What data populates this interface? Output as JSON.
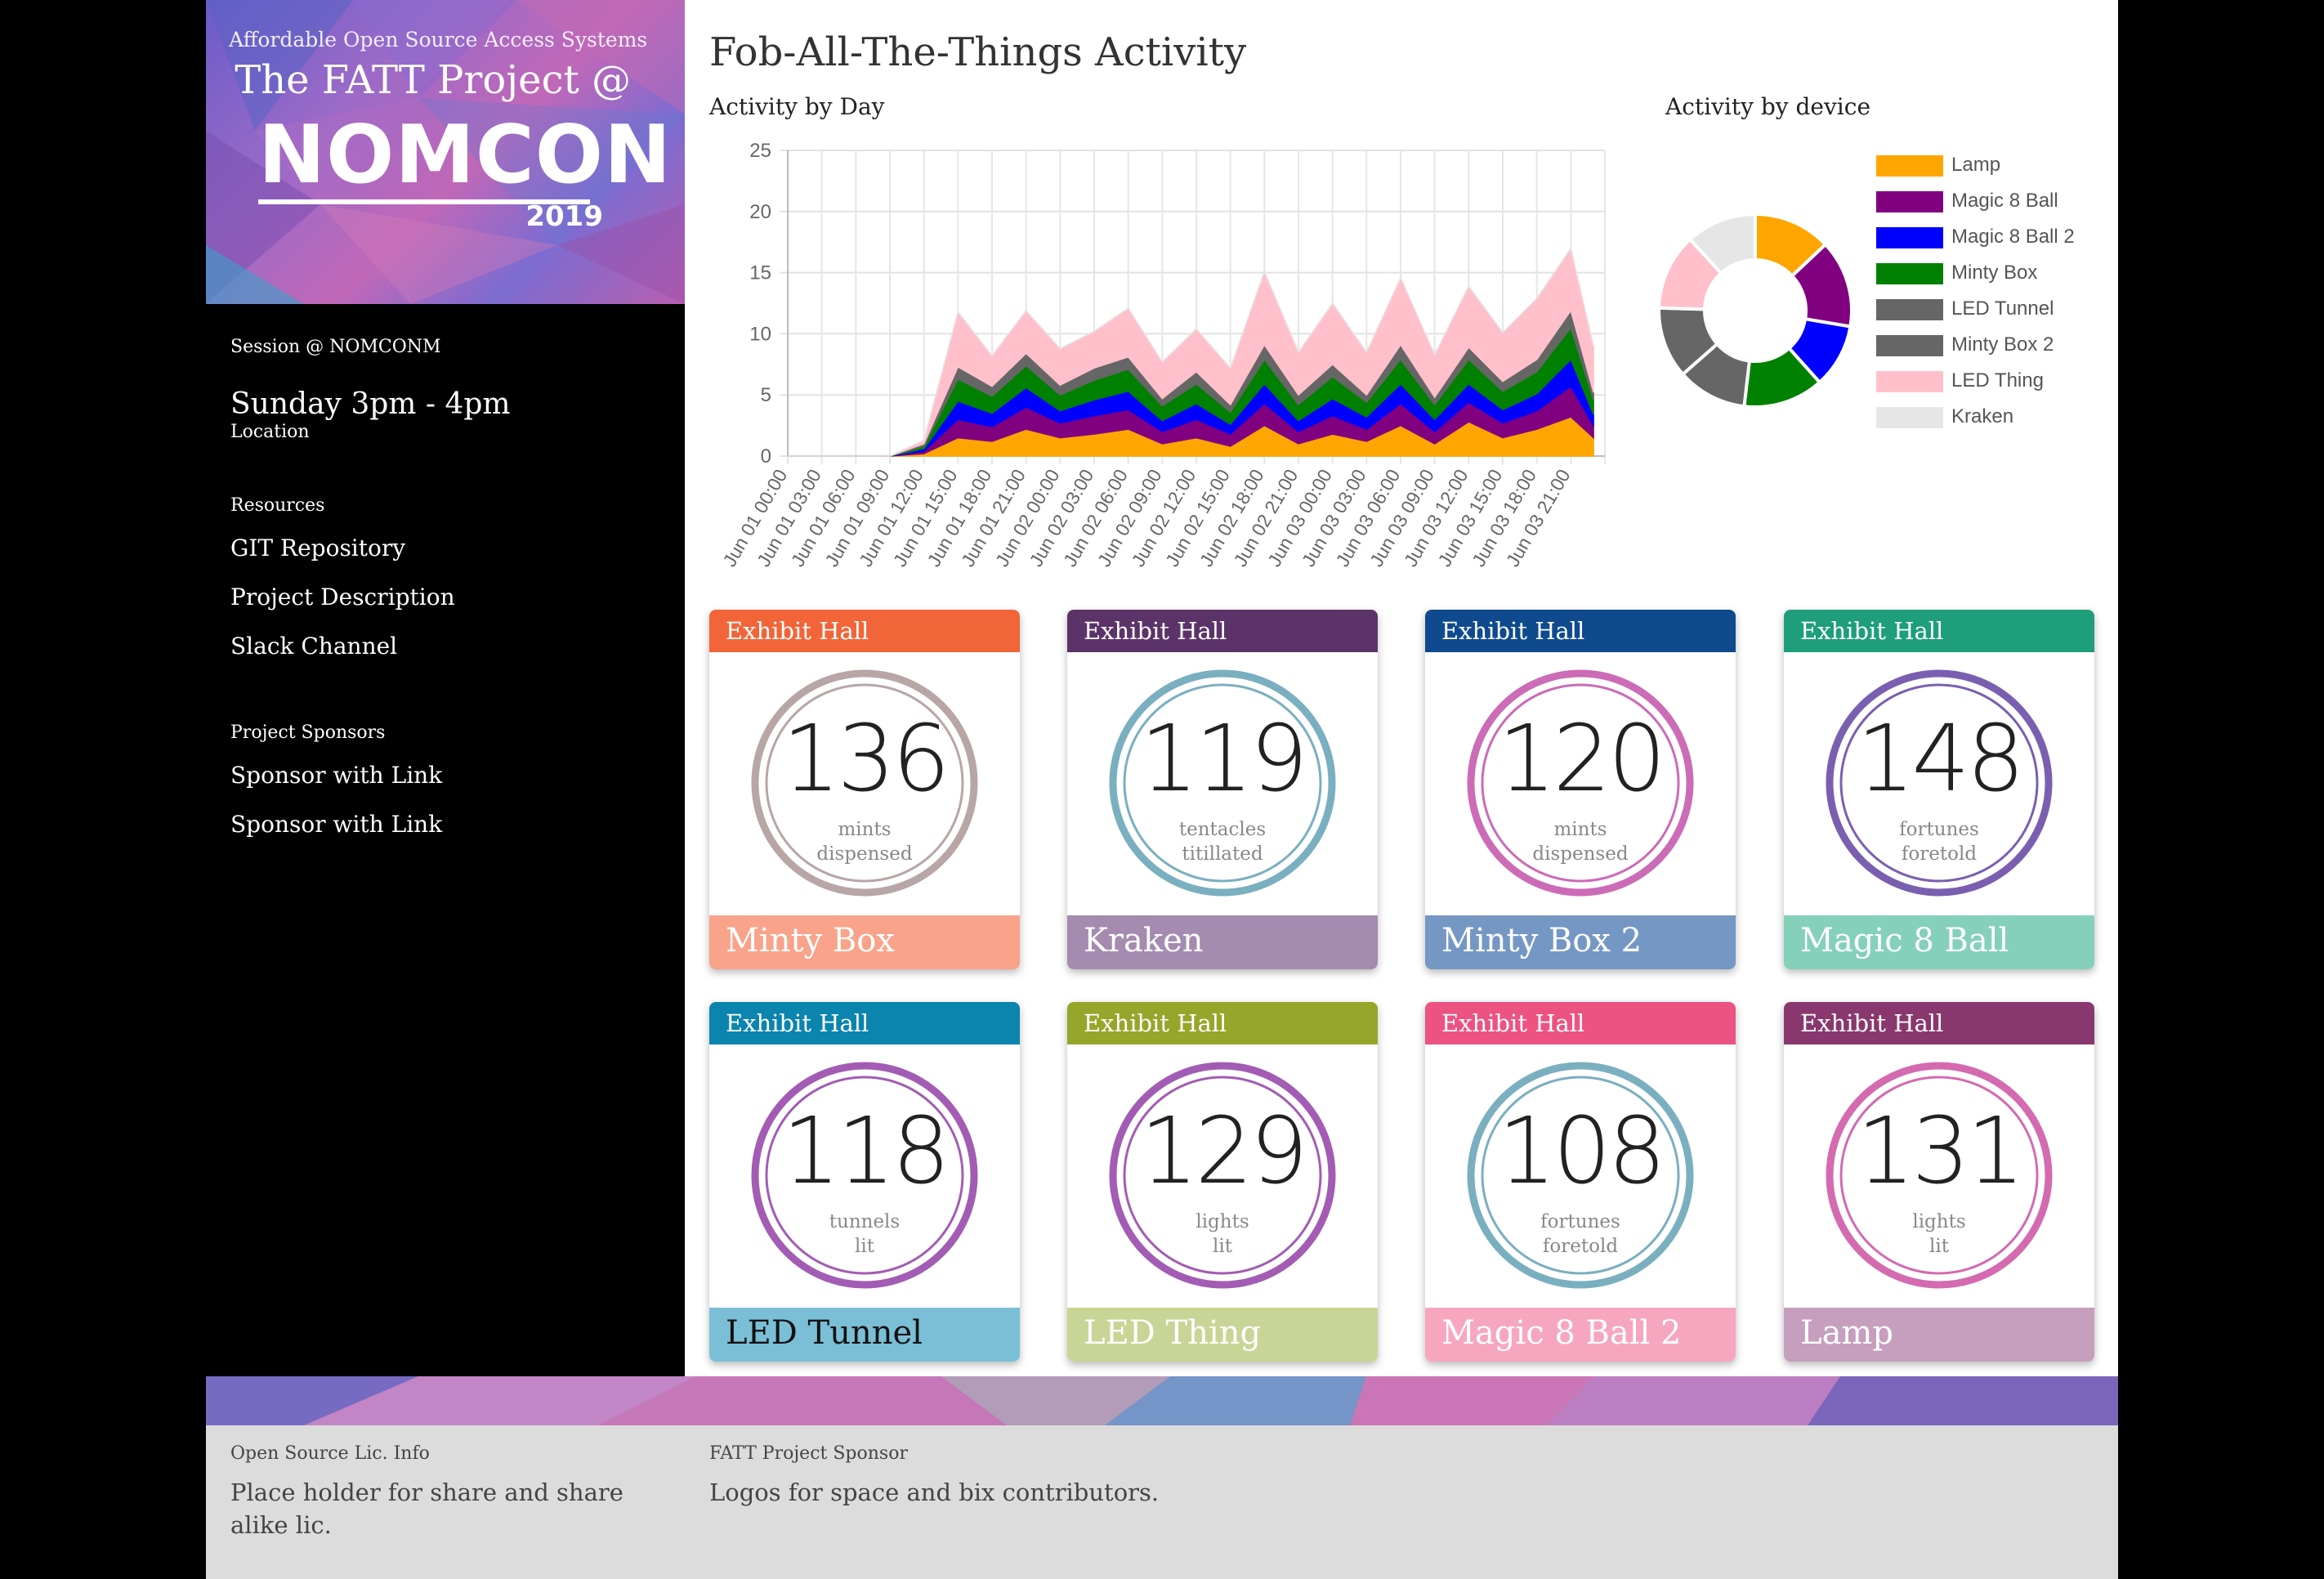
{
  "sidebar": {
    "banner": {
      "tagline": "Affordable Open Source Access Systems",
      "title": "The FATT Project @",
      "event": "NOMCON",
      "year": "2019"
    },
    "session_label": "Session @ NOMCONM",
    "session_time": "Sunday 3pm - 4pm",
    "location_label": "Location",
    "resources_label": "Resources",
    "resources": [
      "GIT Repository",
      "Project Description",
      "Slack Channel"
    ],
    "sponsors_label": "Project Sponsors",
    "sponsors": [
      "Sponsor with Link",
      "Sponsor with Link"
    ]
  },
  "main": {
    "title": "Fob-All-The-Things Activity",
    "activity_by_day_label": "Activity by Day",
    "activity_by_device_label": "Activity by device"
  },
  "chart_data": [
    {
      "type": "area",
      "title": "Activity by Day",
      "stacked": true,
      "ylim": [
        0,
        25
      ],
      "y_ticks": [
        "0",
        "5",
        "10",
        "15",
        "20",
        "25"
      ],
      "grid": true,
      "x_tick_labels": [
        "Jun 01 00:00",
        "Jun 01 03:00",
        "Jun 01 06:00",
        "Jun 01 09:00",
        "Jun 01 12:00",
        "Jun 01 15:00",
        "Jun 01 18:00",
        "Jun 01 21:00",
        "Jun 02 00:00",
        "Jun 02 03:00",
        "Jun 02 06:00",
        "Jun 02 09:00",
        "Jun 02 12:00",
        "Jun 02 15:00",
        "Jun 02 18:00",
        "Jun 02 21:00",
        "Jun 03 00:00",
        "Jun 03 03:00",
        "Jun 03 06:00",
        "Jun 03 09:00",
        "Jun 03 12:00",
        "Jun 03 15:00",
        "Jun 03 18:00",
        "Jun 03 21:00"
      ],
      "x_hours": [
        0,
        3,
        6,
        9,
        12,
        15,
        18,
        21,
        24,
        27,
        30,
        33,
        36,
        39,
        42,
        45,
        48,
        51,
        54,
        57,
        60,
        63,
        66,
        69,
        71
      ],
      "series": [
        {
          "name": "Lamp",
          "color": "#FFA500",
          "values": [
            0,
            0,
            0,
            0,
            0.2,
            1.5,
            1.2,
            2.2,
            1.5,
            1.8,
            2.2,
            1.0,
            1.5,
            0.8,
            2.5,
            1.0,
            1.8,
            1.2,
            2.5,
            1.0,
            2.8,
            1.5,
            2.2,
            3.2,
            1.5
          ]
        },
        {
          "name": "Magic 8 Ball",
          "color": "#800080",
          "values": [
            0,
            0,
            0,
            0,
            0.2,
            1.5,
            1.2,
            1.8,
            1.2,
            1.5,
            1.6,
            1.0,
            1.5,
            1.0,
            1.8,
            1.0,
            1.5,
            1.0,
            1.8,
            1.0,
            1.6,
            1.2,
            1.5,
            2.5,
            1.0
          ]
        },
        {
          "name": "Magic 8 Ball 2",
          "color": "#0000FF",
          "values": [
            0,
            0,
            0,
            0,
            0.2,
            1.5,
            1.1,
            1.6,
            1.0,
            1.3,
            1.5,
            0.9,
            1.3,
            0.8,
            1.6,
            0.9,
            1.4,
            1.0,
            1.6,
            1.0,
            1.5,
            1.1,
            1.4,
            2.2,
            0.9
          ]
        },
        {
          "name": "Minty Box",
          "color": "#008000",
          "values": [
            0,
            0,
            0,
            0,
            0.2,
            1.8,
            1.4,
            1.8,
            1.3,
            1.6,
            1.8,
            1.2,
            1.6,
            1.0,
            2.0,
            1.3,
            1.8,
            1.2,
            2.0,
            1.2,
            2.0,
            1.5,
            1.8,
            2.6,
            1.2
          ]
        },
        {
          "name": "LED Tunnel",
          "color": "#666666",
          "values": [
            0,
            0,
            0,
            0,
            0.1,
            0.5,
            0.4,
            0.5,
            0.4,
            0.5,
            0.5,
            0.3,
            0.5,
            0.3,
            0.6,
            0.4,
            0.5,
            0.3,
            0.6,
            0.3,
            0.5,
            0.4,
            0.5,
            0.7,
            0.3
          ]
        },
        {
          "name": "Minty Box 2",
          "color": "#666666",
          "values": [
            0,
            0,
            0,
            0,
            0.1,
            0.5,
            0.4,
            0.5,
            0.4,
            0.5,
            0.5,
            0.3,
            0.5,
            0.3,
            0.6,
            0.4,
            0.5,
            0.3,
            0.6,
            0.3,
            0.5,
            0.4,
            0.5,
            0.7,
            0.3
          ]
        },
        {
          "name": "LED Thing",
          "color": "#FFC0CB",
          "values": [
            0,
            0,
            0,
            0,
            0.3,
            4.5,
            2.5,
            3.5,
            3.0,
            3.0,
            4.0,
            3.0,
            3.5,
            3.0,
            6.0,
            3.5,
            5.0,
            3.5,
            5.5,
            3.5,
            5.0,
            4.0,
            5.0,
            5.1,
            3.8
          ]
        },
        {
          "name": "Kraken",
          "color": "#E6E6E6",
          "values": [
            0,
            0,
            0,
            0,
            0,
            0,
            0,
            0,
            0,
            0,
            0,
            0,
            0,
            0,
            0,
            0,
            0,
            0,
            0,
            0,
            0,
            0,
            0,
            0,
            0
          ]
        }
      ]
    },
    {
      "type": "pie",
      "donut": true,
      "title": "Activity by device",
      "legend_position": "right",
      "categories": [
        "Lamp",
        "Magic 8 Ball",
        "Magic 8 Ball 2",
        "Minty Box",
        "LED Tunnel",
        "Minty Box 2",
        "LED Thing",
        "Kraken"
      ],
      "values": [
        131,
        148,
        108,
        136,
        118,
        120,
        129,
        119
      ],
      "colors": [
        "#FFA500",
        "#800080",
        "#0000FF",
        "#008000",
        "#666666",
        "#666666",
        "#FFC0CB",
        "#E6E6E6"
      ]
    }
  ],
  "cards": [
    {
      "location": "Exhibit Hall",
      "value": "136",
      "unit1": "mints",
      "unit2": "dispensed",
      "name": "Minty Box",
      "head_color": "#F26538",
      "foot_color": "#F8A38A",
      "foot_text_color": "#ffffff",
      "ring_color": "#B8A6A6"
    },
    {
      "location": "Exhibit Hall",
      "value": "119",
      "unit1": "tentacles",
      "unit2": "titillated",
      "name": "Kraken",
      "head_color": "#5C3369",
      "foot_color": "#A58BB0",
      "foot_text_color": "#ffffff",
      "ring_color": "#7AAFC0"
    },
    {
      "location": "Exhibit Hall",
      "value": "120",
      "unit1": "mints",
      "unit2": "dispensed",
      "name": "Minty Box 2",
      "head_color": "#0F4A8F",
      "foot_color": "#7597C4",
      "foot_text_color": "#ffffff",
      "ring_color": "#CC6BB6"
    },
    {
      "location": "Exhibit Hall",
      "value": "148",
      "unit1": "fortunes",
      "unit2": "foretold",
      "name": "Magic 8 Ball",
      "head_color": "#1E9E7A",
      "foot_color": "#85D0BA",
      "foot_text_color": "#ffffff",
      "ring_color": "#7A5FB0"
    },
    {
      "location": "Exhibit Hall",
      "value": "118",
      "unit1": "tunnels",
      "unit2": "lit",
      "name": "LED Tunnel",
      "head_color": "#0B84AE",
      "foot_color": "#7ABFD6",
      "foot_text_color": "#111111",
      "ring_color": "#A35CB3"
    },
    {
      "location": "Exhibit Hall",
      "value": "129",
      "unit1": "lights",
      "unit2": "lit",
      "name": "LED Thing",
      "head_color": "#95A62B",
      "foot_color": "#C8D596",
      "foot_text_color": "#ffffff",
      "ring_color": "#A35CB3"
    },
    {
      "location": "Exhibit Hall",
      "value": "108",
      "unit1": "fortunes",
      "unit2": "foretold",
      "name": "Magic 8 Ball 2",
      "head_color": "#EC5382",
      "foot_color": "#F6A7BF",
      "foot_text_color": "#ffffff",
      "ring_color": "#7AAFC0"
    },
    {
      "location": "Exhibit Hall",
      "value": "131",
      "unit1": "lights",
      "unit2": "lit",
      "name": "Lamp",
      "head_color": "#88386E",
      "foot_color": "#C69EBE",
      "foot_text_color": "#ffffff",
      "ring_color": "#D46AB0"
    }
  ],
  "footer": {
    "license_label": "Open Source Lic. Info",
    "license_text": "Place holder for share and share alike lic.",
    "sponsor_label": "FATT Project Sponsor",
    "sponsor_text": "Logos for space and bix contributors."
  }
}
